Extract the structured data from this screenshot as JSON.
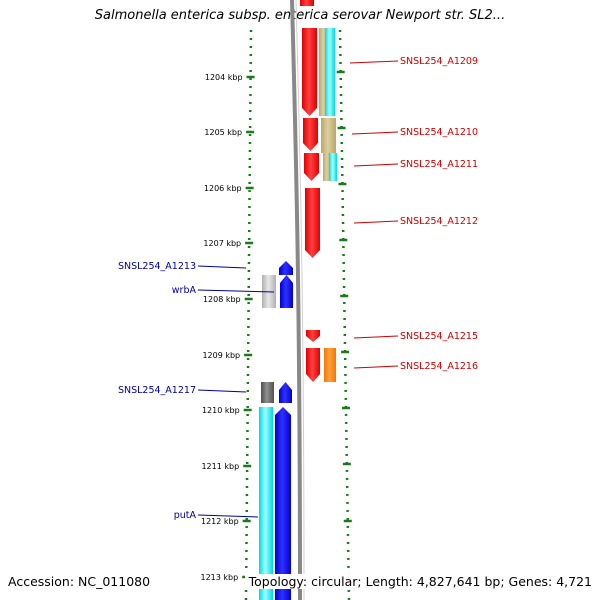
{
  "title": "Salmonella enterica subsp. enterica serovar Newport str. SL2...",
  "footer": {
    "accession": "Accession: NC_011080",
    "summary": "Topology: circular; Length: 4,827,641 bp; Genes: 4,721"
  },
  "colors": {
    "dots": "#1a7a1a",
    "backbone": "#888888",
    "label_red": "#cc0000",
    "label_blue": "#000099",
    "red": "#ff0000",
    "blue": "#0000ee",
    "cyan": "#00e5ee",
    "khaki": "#c8b878",
    "orange": "#ff8c00",
    "gray_light": "#c8c8c8",
    "gray_dark": "#646464"
  },
  "scale_labels": [
    "1204 kbp",
    "1205 kbp",
    "1206 kbp",
    "1207 kbp",
    "1208 kbp",
    "1209 kbp",
    "1210 kbp",
    "1211 kbp",
    "1212 kbp",
    "1213 kbp"
  ],
  "gene_labels_right": [
    "SNSL254_A1209",
    "SNSL254_A1210",
    "SNSL254_A1211",
    "SNSL254_A1212",
    "SNSL254_A1215",
    "SNSL254_A1216"
  ],
  "gene_labels_left": [
    "SNSL254_A1213",
    "wrbA",
    "SNSL254_A1217",
    "putA"
  ]
}
